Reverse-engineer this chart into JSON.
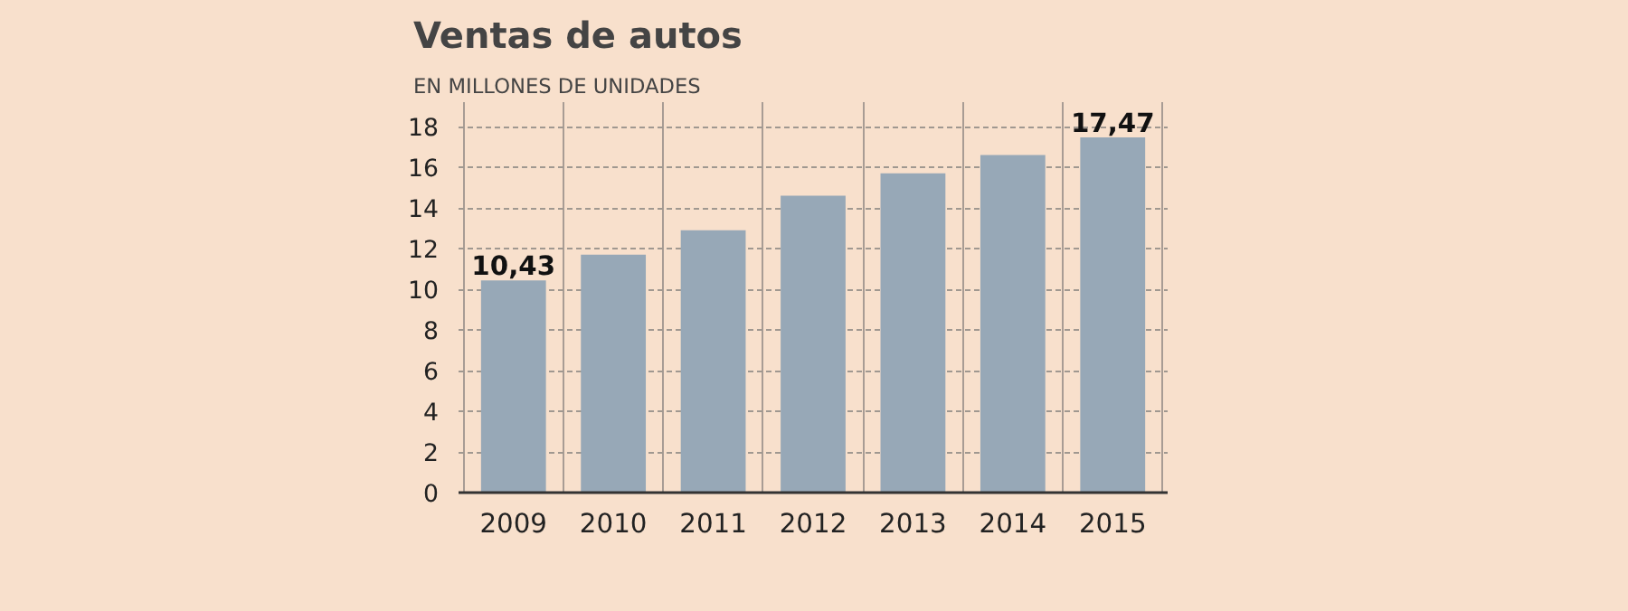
{
  "chart_data": {
    "type": "bar",
    "title": "Ventas de autos",
    "subtitle": "EN MILLONES DE UNIDADES",
    "categories": [
      "2009",
      "2010",
      "2011",
      "2012",
      "2013",
      "2014",
      "2015"
    ],
    "values": [
      10.43,
      11.7,
      12.9,
      14.6,
      15.7,
      16.6,
      17.47
    ],
    "value_labels": [
      "10,43",
      null,
      null,
      null,
      null,
      null,
      "17,47"
    ],
    "color": "#97a8b7",
    "ylim": [
      0,
      19.2
    ],
    "yticks": [
      0,
      2,
      4,
      6,
      8,
      10,
      12,
      14,
      16,
      18
    ],
    "grid": true
  }
}
